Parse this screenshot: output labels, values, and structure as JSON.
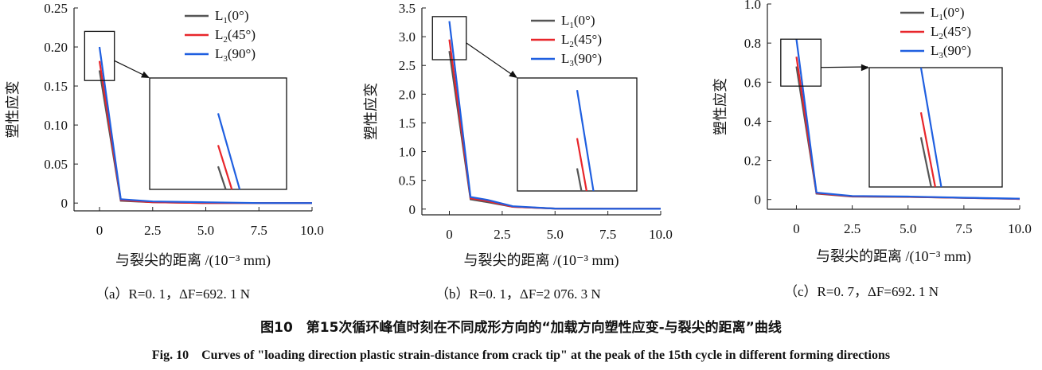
{
  "chart_data": [
    {
      "type": "line",
      "panel": "a",
      "ylabel": "塑性应变",
      "xlabel": "与裂尖的距离 /(10⁻³ mm)",
      "xlim": [
        -1.2,
        10.0
      ],
      "ylim": [
        -0.01,
        0.25
      ],
      "xticks": [
        "0",
        "2.5",
        "5.0",
        "7.5",
        "10.0"
      ],
      "yticks": [
        "0",
        "0.05",
        "0.10",
        "0.15",
        "0.20",
        "0.25"
      ],
      "ytick_values": [
        0,
        0.05,
        0.1,
        0.15,
        0.2,
        0.25
      ],
      "legend": "top-right",
      "legend_entries": [
        {
          "base": "L",
          "sub": "1",
          "suffix": "(0°)"
        },
        {
          "base": "L",
          "sub": "2",
          "suffix": "(45°)"
        },
        {
          "base": "L",
          "sub": "3",
          "suffix": "(90°)"
        }
      ],
      "series": [
        {
          "color": "#555555",
          "x": [
            0,
            1.0,
            2.5,
            5.0,
            7.5,
            10.0
          ],
          "y": [
            0.17,
            0.003,
            0.001,
            0.0,
            0.0,
            0.0
          ]
        },
        {
          "color": "#e8262b",
          "x": [
            0,
            1.0,
            2.5,
            5.0,
            7.5,
            10.0
          ],
          "y": [
            0.182,
            0.004,
            0.001,
            0.0,
            0.0,
            0.0
          ]
        },
        {
          "color": "#1f5fe0",
          "x": [
            0,
            1.0,
            2.5,
            5.0,
            7.5,
            10.0
          ],
          "y": [
            0.2,
            0.005,
            0.002,
            0.001,
            0.0,
            0.0
          ]
        }
      ],
      "zoom_box": {
        "x": [
          -0.7,
          0.7
        ],
        "y": [
          0.157,
          0.22
        ]
      },
      "caption": "（a）R=0. 1，ΔF=692. 1 N"
    },
    {
      "type": "line",
      "panel": "b",
      "ylabel": "塑性应变",
      "xlabel": "与裂尖的距离 /(10⁻³ mm)",
      "xlim": [
        -1.3,
        10.0
      ],
      "ylim": [
        -0.1,
        3.5
      ],
      "xticks": [
        "0",
        "2.5",
        "5.0",
        "7.5",
        "10.0"
      ],
      "yticks": [
        "0",
        "0.5",
        "1.0",
        "1.5",
        "2.0",
        "2.5",
        "3.0",
        "3.5"
      ],
      "ytick_values": [
        0,
        0.5,
        1.0,
        1.5,
        2.0,
        2.5,
        3.0,
        3.5
      ],
      "legend": "top-right",
      "legend_entries": [
        {
          "base": "L",
          "sub": "1",
          "suffix": "(0°)"
        },
        {
          "base": "L",
          "sub": "2",
          "suffix": "(45°)"
        },
        {
          "base": "L",
          "sub": "3",
          "suffix": "(90°)"
        }
      ],
      "series": [
        {
          "color": "#555555",
          "x": [
            0,
            1.0,
            1.8,
            3.0,
            5.0,
            7.5,
            10.0
          ],
          "y": [
            2.75,
            0.17,
            0.12,
            0.04,
            0.01,
            0.005,
            0.005
          ]
        },
        {
          "color": "#e8262b",
          "x": [
            0,
            1.0,
            1.8,
            3.0,
            5.0,
            7.5,
            10.0
          ],
          "y": [
            2.95,
            0.19,
            0.14,
            0.04,
            0.01,
            0.005,
            0.005
          ]
        },
        {
          "color": "#1f5fe0",
          "x": [
            0,
            1.0,
            1.8,
            3.0,
            5.0,
            7.5,
            10.0
          ],
          "y": [
            3.27,
            0.21,
            0.16,
            0.05,
            0.01,
            0.005,
            0.005
          ]
        }
      ],
      "zoom_box": {
        "x": [
          -0.8,
          0.8
        ],
        "y": [
          2.6,
          3.35
        ]
      },
      "caption": "（b）R=0. 1，ΔF=2 076. 3 N"
    },
    {
      "type": "line",
      "panel": "c",
      "ylabel": "塑性应变",
      "xlabel": "与裂尖的距离 /(10⁻³ mm)",
      "xlim": [
        -1.3,
        10.0
      ],
      "ylim": [
        -0.05,
        1.0
      ],
      "xticks": [
        "0",
        "2.5",
        "5.0",
        "7.5",
        "10.0"
      ],
      "yticks": [
        "0",
        "0.2",
        "0.4",
        "0.6",
        "0.8",
        "1.0"
      ],
      "ytick_values": [
        0,
        0.2,
        0.4,
        0.6,
        0.8,
        1.0
      ],
      "legend": "top-right",
      "legend_entries": [
        {
          "base": "L",
          "sub": "1",
          "suffix": "(0°)"
        },
        {
          "base": "L",
          "sub": "2",
          "suffix": "(45°)"
        },
        {
          "base": "L",
          "sub": "3",
          "suffix": "(90°)"
        }
      ],
      "series": [
        {
          "color": "#555555",
          "x": [
            0,
            0.9,
            2.5,
            5.0,
            7.5,
            10.0
          ],
          "y": [
            0.68,
            0.03,
            0.015,
            0.013,
            0.008,
            0.003
          ]
        },
        {
          "color": "#e8262b",
          "x": [
            0,
            0.9,
            2.5,
            5.0,
            7.5,
            10.0
          ],
          "y": [
            0.73,
            0.032,
            0.016,
            0.014,
            0.008,
            0.003
          ]
        },
        {
          "color": "#1f5fe0",
          "x": [
            0,
            0.9,
            2.5,
            5.0,
            7.5,
            10.0
          ],
          "y": [
            0.82,
            0.035,
            0.018,
            0.015,
            0.009,
            0.004
          ]
        }
      ],
      "zoom_box": {
        "x": [
          -0.7,
          1.1
        ],
        "y": [
          0.58,
          0.82
        ]
      },
      "caption": "（c）R=0. 7，ΔF=692. 1 N"
    }
  ],
  "figure_caption_cn": "图10　第15次循环峰值时刻在不同成形方向的“加载方向塑性应变-与裂尖的距离”曲线",
  "figure_caption_en": "Fig. 10　Curves of \"loading direction plastic strain-distance from crack tip\" at the peak of the 15th cycle in different forming directions"
}
